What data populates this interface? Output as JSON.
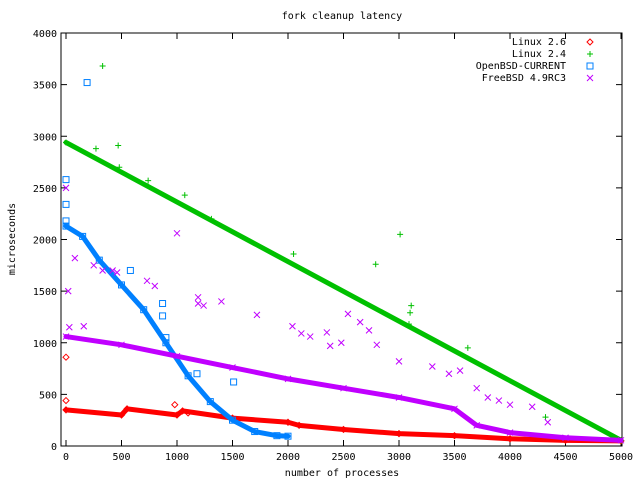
{
  "chart_data": {
    "type": "scatter",
    "title": "fork cleanup latency",
    "xlabel": "number of processes",
    "ylabel": "microseconds",
    "xlim": [
      0,
      5000
    ],
    "ylim": [
      0,
      4000
    ],
    "xticks": [
      0,
      500,
      1000,
      1500,
      2000,
      2500,
      3000,
      3500,
      4000,
      4500,
      5000
    ],
    "yticks": [
      0,
      500,
      1000,
      1500,
      2000,
      2500,
      3000,
      3500,
      4000
    ],
    "grid": false,
    "legend_position": "top-right",
    "series": [
      {
        "name": "Linux 2.6",
        "color": "#ff0000",
        "marker": "diamond",
        "curve": [
          [
            0,
            350
          ],
          [
            500,
            300
          ],
          [
            550,
            360
          ],
          [
            1000,
            300
          ],
          [
            1050,
            340
          ],
          [
            1500,
            270
          ],
          [
            2000,
            230
          ],
          [
            2100,
            200
          ],
          [
            2500,
            160
          ],
          [
            3000,
            120
          ],
          [
            3500,
            100
          ],
          [
            4000,
            70
          ],
          [
            4500,
            55
          ],
          [
            5000,
            50
          ]
        ],
        "outliers": [
          [
            0,
            860
          ],
          [
            0,
            440
          ],
          [
            980,
            400
          ],
          [
            1100,
            320
          ]
        ]
      },
      {
        "name": "Linux 2.4",
        "color": "#00c000",
        "marker": "plus",
        "curve": [
          [
            0,
            2940
          ],
          [
            5000,
            55
          ]
        ],
        "outliers": [
          [
            330,
            3680
          ],
          [
            270,
            2880
          ],
          [
            470,
            2910
          ],
          [
            480,
            2700
          ],
          [
            740,
            2570
          ],
          [
            1070,
            2430
          ],
          [
            1310,
            2200
          ],
          [
            2050,
            1860
          ],
          [
            2790,
            1760
          ],
          [
            3010,
            2050
          ],
          [
            3110,
            1360
          ],
          [
            3100,
            1290
          ],
          [
            3090,
            1180
          ],
          [
            3620,
            950
          ],
          [
            4320,
            280
          ]
        ]
      },
      {
        "name": "OpenBSD-CURRENT",
        "color": "#0080ff",
        "marker": "square",
        "curve": [
          [
            0,
            2130
          ],
          [
            150,
            2030
          ],
          [
            300,
            1800
          ],
          [
            500,
            1560
          ],
          [
            700,
            1320
          ],
          [
            900,
            1000
          ],
          [
            1100,
            680
          ],
          [
            1300,
            430
          ],
          [
            1500,
            250
          ],
          [
            1700,
            140
          ],
          [
            1900,
            100
          ],
          [
            2000,
            95
          ]
        ],
        "outliers": [
          [
            190,
            3520
          ],
          [
            0,
            2580
          ],
          [
            0,
            2340
          ],
          [
            0,
            2180
          ],
          [
            580,
            1700
          ],
          [
            870,
            1380
          ],
          [
            870,
            1260
          ],
          [
            900,
            1050
          ],
          [
            1180,
            700
          ],
          [
            1510,
            620
          ]
        ]
      },
      {
        "name": "FreeBSD 4.9RC3",
        "color": "#c000ff",
        "marker": "cross",
        "curve": [
          [
            0,
            1060
          ],
          [
            500,
            980
          ],
          [
            1000,
            870
          ],
          [
            1500,
            760
          ],
          [
            2000,
            650
          ],
          [
            2500,
            560
          ],
          [
            3000,
            470
          ],
          [
            3500,
            360
          ],
          [
            3700,
            200
          ],
          [
            4000,
            130
          ],
          [
            4500,
            80
          ],
          [
            5000,
            55
          ]
        ],
        "outliers": [
          [
            0,
            2500
          ],
          [
            20,
            1500
          ],
          [
            30,
            1150
          ],
          [
            80,
            1820
          ],
          [
            160,
            1160
          ],
          [
            250,
            1750
          ],
          [
            330,
            1700
          ],
          [
            420,
            1700
          ],
          [
            460,
            1680
          ],
          [
            730,
            1600
          ],
          [
            800,
            1550
          ],
          [
            1000,
            2060
          ],
          [
            1190,
            1440
          ],
          [
            1190,
            1380
          ],
          [
            1240,
            1360
          ],
          [
            1400,
            1400
          ],
          [
            1720,
            1270
          ],
          [
            2040,
            1160
          ],
          [
            2120,
            1090
          ],
          [
            2200,
            1060
          ],
          [
            2350,
            1100
          ],
          [
            2380,
            970
          ],
          [
            2480,
            1000
          ],
          [
            2540,
            1280
          ],
          [
            2650,
            1200
          ],
          [
            2730,
            1120
          ],
          [
            2800,
            980
          ],
          [
            3000,
            820
          ],
          [
            3300,
            770
          ],
          [
            3450,
            700
          ],
          [
            3550,
            730
          ],
          [
            3700,
            560
          ],
          [
            3800,
            470
          ],
          [
            3900,
            440
          ],
          [
            4000,
            400
          ],
          [
            4200,
            380
          ],
          [
            4340,
            230
          ]
        ]
      }
    ]
  }
}
